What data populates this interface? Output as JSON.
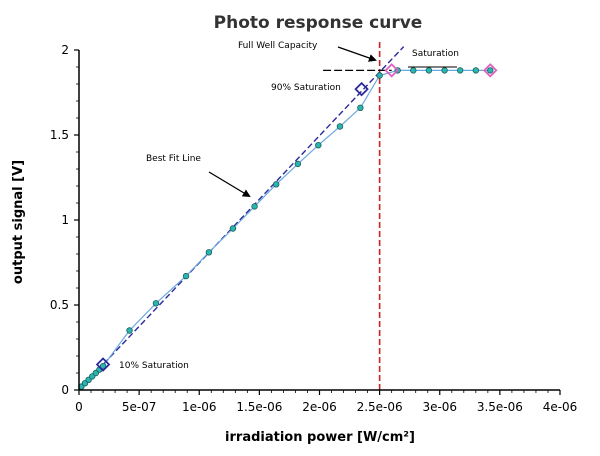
{
  "chart_data": {
    "type": "scatter",
    "title": "Photo response curve",
    "xlabel": "irradiation power [W/cm²]",
    "ylabel": "output signal [V]",
    "xlim": [
      0,
      4e-06
    ],
    "ylim": [
      0,
      2
    ],
    "x_ticks": [
      0,
      5e-07,
      1e-06,
      1.5e-06,
      2e-06,
      2.5e-06,
      3e-06,
      3.5e-06,
      4e-06
    ],
    "x_tick_labels": [
      "0",
      "5e-07",
      "1e-06",
      "1.5e-06",
      "2e-06",
      "2.5e-06",
      "3e-06",
      "3.5e-06",
      "4e-06"
    ],
    "y_ticks": [
      0,
      0.5,
      1,
      1.5,
      2
    ],
    "y_tick_labels": [
      "0",
      "0.5",
      "1",
      "1.5",
      "2"
    ],
    "grid": false,
    "series": [
      {
        "color": "#2ab5b0",
        "x": [
          2e-08,
          5e-08,
          8e-08,
          1.1e-07,
          1.4e-07,
          1.7e-07,
          2e-07,
          4.2e-07,
          6.4e-07,
          8.9e-07,
          1.08e-06,
          1.28e-06,
          1.46e-06,
          1.64e-06,
          1.82e-06,
          1.99e-06,
          2.17e-06,
          2.34e-06,
          2.5e-06,
          2.65e-06,
          2.78e-06,
          2.91e-06,
          3.04e-06,
          3.17e-06,
          3.3e-06,
          3.42e-06
        ],
        "y": [
          0.02,
          0.04,
          0.06,
          0.08,
          0.1,
          0.12,
          0.14,
          0.35,
          0.51,
          0.67,
          0.81,
          0.95,
          1.08,
          1.21,
          1.33,
          1.44,
          1.55,
          1.66,
          1.85,
          1.88,
          1.88,
          1.88,
          1.88,
          1.88,
          1.88,
          1.88
        ]
      },
      {
        "color": "#2a2a9a",
        "x": [
          0,
          2.5e-06
        ],
        "y": [
          0,
          1.87
        ]
      }
    ],
    "highlight_points": [
      {
        "x": 2e-07,
        "y": 0.15,
        "color": "#2a2a9a"
      },
      {
        "x": 2.35e-06,
        "y": 1.77,
        "color": "#2a2a9a"
      },
      {
        "x": 2.6e-06,
        "y": 1.88,
        "color": "#e060c0"
      },
      {
        "x": 3.42e-06,
        "y": 1.88,
        "color": "#e060c0"
      }
    ],
    "vertical_line": {
      "x": 2.5e-06,
      "color": "#cc2222"
    },
    "saturation_level": 1.88,
    "annotations": [
      {
        "text": "Full Well Capacity"
      },
      {
        "text": "Saturation"
      },
      {
        "text": "90% Saturation"
      },
      {
        "text": "Best Fit Line"
      },
      {
        "text": "10% Saturation"
      }
    ]
  }
}
